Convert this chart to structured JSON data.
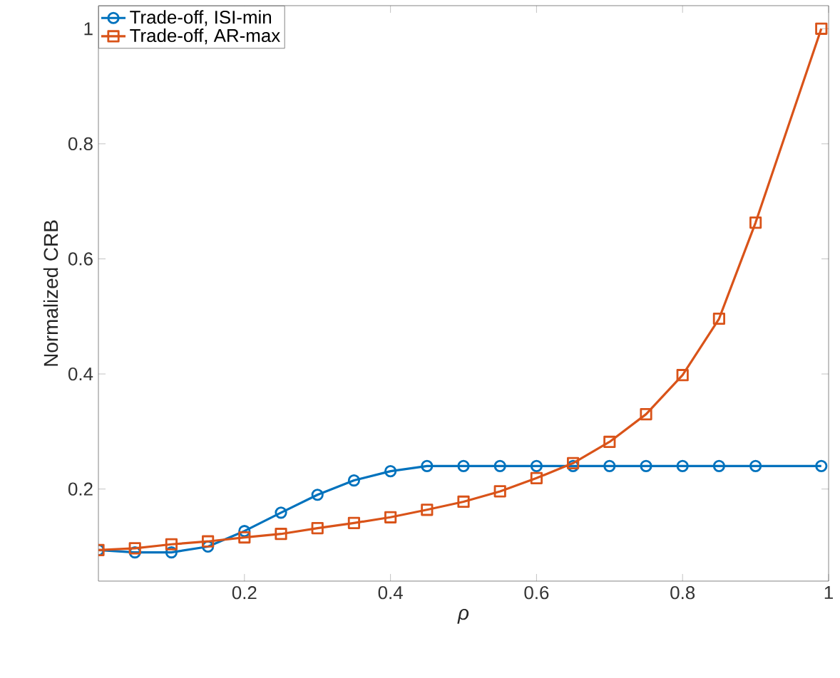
{
  "chart_data": {
    "type": "line",
    "xlabel": "ρ",
    "ylabel": "Normalized CRB",
    "x": [
      0,
      0.05,
      0.1,
      0.15,
      0.2,
      0.25,
      0.3,
      0.35,
      0.4,
      0.45,
      0.5,
      0.55,
      0.6,
      0.65,
      0.7,
      0.75,
      0.8,
      0.85,
      0.9,
      0.99
    ],
    "series": [
      {
        "name": "Trade-off, ISI-min",
        "color": "#0072bd",
        "marker": "circle",
        "values": [
          0.094,
          0.09,
          0.09,
          0.1,
          0.127,
          0.159,
          0.19,
          0.215,
          0.231,
          0.24,
          0.24,
          0.24,
          0.24,
          0.24,
          0.24,
          0.24,
          0.24,
          0.24,
          0.24,
          0.24
        ]
      },
      {
        "name": "Trade-off, AR-max",
        "color": "#d95319",
        "marker": "square",
        "values": [
          0.094,
          0.097,
          0.104,
          0.109,
          0.116,
          0.122,
          0.132,
          0.141,
          0.151,
          0.164,
          0.178,
          0.196,
          0.219,
          0.245,
          0.282,
          0.33,
          0.398,
          0.496,
          0.663,
          1
        ]
      }
    ],
    "xlim": [
      0,
      1
    ],
    "ylim": [
      0.04,
      1.04
    ],
    "xticks": [
      0.2,
      0.4,
      0.6,
      0.8,
      1
    ],
    "yticks": [
      0.2,
      0.4,
      0.6,
      0.8,
      1
    ],
    "grid": false,
    "legend": "top left",
    "line_style": "solid"
  }
}
